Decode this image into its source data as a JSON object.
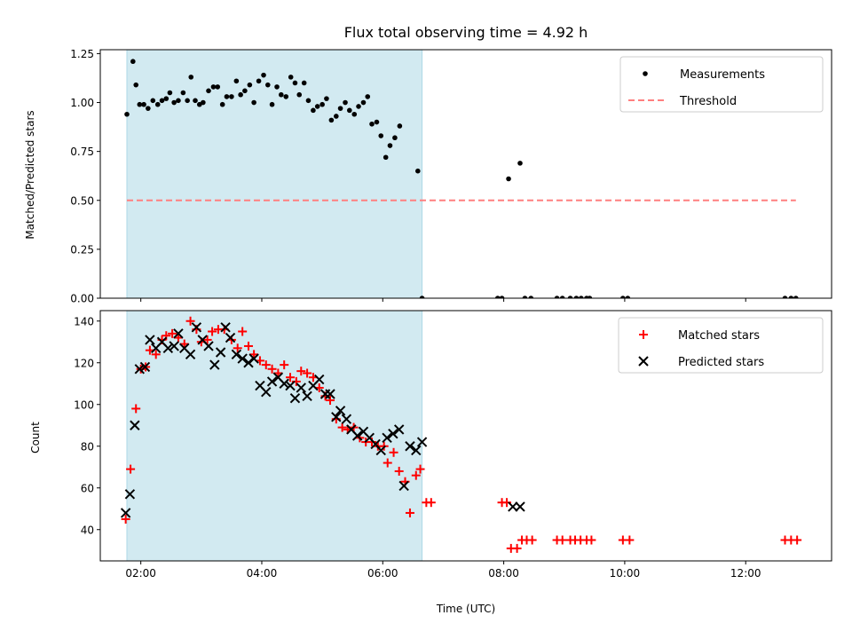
{
  "chart_data": [
    {
      "type": "scatter",
      "panel": "top",
      "title": "Flux total observing time = 4.92 h",
      "ylabel": "Matched/Predicted stars",
      "xlabel": "",
      "x_unit": "hours UTC",
      "xlim": [
        1.33,
        13.42
      ],
      "ylim": [
        0,
        1.27
      ],
      "yticks": [
        "0.00",
        "0.25",
        "0.50",
        "0.75",
        "1.00",
        "1.25"
      ],
      "shaded_span": {
        "x0": 1.77,
        "x1": 6.65,
        "color": "#add8e6"
      },
      "legend": {
        "location": "top-right",
        "entries": [
          "Measurements",
          "Threshold"
        ]
      },
      "series": [
        {
          "name": "Measurements",
          "marker": "dot",
          "color": "#000000",
          "points": [
            [
              1.77,
              0.94
            ],
            [
              1.87,
              1.21
            ],
            [
              1.92,
              1.09
            ],
            [
              1.98,
              0.99
            ],
            [
              2.05,
              0.99
            ],
            [
              2.12,
              0.97
            ],
            [
              2.2,
              1.01
            ],
            [
              2.28,
              0.99
            ],
            [
              2.35,
              1.01
            ],
            [
              2.42,
              1.02
            ],
            [
              2.48,
              1.05
            ],
            [
              2.55,
              1.0
            ],
            [
              2.62,
              1.01
            ],
            [
              2.7,
              1.05
            ],
            [
              2.77,
              1.01
            ],
            [
              2.83,
              1.13
            ],
            [
              2.9,
              1.01
            ],
            [
              2.97,
              0.99
            ],
            [
              3.03,
              1.0
            ],
            [
              3.12,
              1.06
            ],
            [
              3.2,
              1.08
            ],
            [
              3.27,
              1.08
            ],
            [
              3.35,
              0.99
            ],
            [
              3.42,
              1.03
            ],
            [
              3.5,
              1.03
            ],
            [
              3.58,
              1.11
            ],
            [
              3.65,
              1.04
            ],
            [
              3.72,
              1.06
            ],
            [
              3.8,
              1.09
            ],
            [
              3.87,
              1.0
            ],
            [
              3.95,
              1.11
            ],
            [
              4.03,
              1.14
            ],
            [
              4.1,
              1.09
            ],
            [
              4.17,
              0.99
            ],
            [
              4.25,
              1.08
            ],
            [
              4.32,
              1.04
            ],
            [
              4.4,
              1.03
            ],
            [
              4.48,
              1.13
            ],
            [
              4.55,
              1.1
            ],
            [
              4.62,
              1.04
            ],
            [
              4.7,
              1.1
            ],
            [
              4.77,
              1.01
            ],
            [
              4.85,
              0.96
            ],
            [
              4.92,
              0.98
            ],
            [
              5.0,
              0.99
            ],
            [
              5.07,
              1.02
            ],
            [
              5.15,
              0.91
            ],
            [
              5.23,
              0.93
            ],
            [
              5.3,
              0.97
            ],
            [
              5.38,
              1.0
            ],
            [
              5.45,
              0.96
            ],
            [
              5.53,
              0.94
            ],
            [
              5.6,
              0.98
            ],
            [
              5.68,
              1.0
            ],
            [
              5.75,
              1.03
            ],
            [
              5.82,
              0.89
            ],
            [
              5.9,
              0.9
            ],
            [
              5.97,
              0.83
            ],
            [
              6.05,
              0.72
            ],
            [
              6.12,
              0.78
            ],
            [
              6.2,
              0.82
            ],
            [
              6.28,
              0.88
            ],
            [
              6.58,
              0.65
            ],
            [
              6.65,
              0.0
            ],
            [
              7.9,
              0.0
            ],
            [
              7.97,
              0.0
            ],
            [
              8.08,
              0.61
            ],
            [
              8.27,
              0.69
            ],
            [
              8.35,
              0.0
            ],
            [
              8.45,
              0.0
            ],
            [
              8.88,
              0.0
            ],
            [
              8.97,
              0.0
            ],
            [
              9.1,
              0.0
            ],
            [
              9.2,
              0.0
            ],
            [
              9.28,
              0.0
            ],
            [
              9.37,
              0.0
            ],
            [
              9.42,
              0.0
            ],
            [
              9.97,
              0.0
            ],
            [
              10.05,
              0.0
            ],
            [
              12.65,
              0.0
            ],
            [
              12.75,
              0.0
            ],
            [
              12.83,
              0.0
            ]
          ]
        },
        {
          "name": "Threshold",
          "line": "dashed",
          "color": "#ff7f7f",
          "points": [
            [
              1.77,
              0.5
            ],
            [
              12.83,
              0.5
            ]
          ]
        }
      ]
    },
    {
      "type": "scatter",
      "panel": "bottom",
      "title": "",
      "ylabel": "Count",
      "xlabel": "Time (UTC)",
      "x_unit": "hours UTC",
      "xlim": [
        1.33,
        13.42
      ],
      "ylim": [
        25,
        145
      ],
      "yticks": [
        "40",
        "60",
        "80",
        "100",
        "120",
        "140"
      ],
      "xticks": [
        "02:00",
        "04:00",
        "06:00",
        "08:00",
        "10:00",
        "12:00"
      ],
      "shaded_span": {
        "x0": 1.77,
        "x1": 6.65,
        "color": "#add8e6"
      },
      "legend": {
        "location": "top-right",
        "entries": [
          "Matched stars",
          "Predicted stars"
        ]
      },
      "series": [
        {
          "name": "Matched stars",
          "marker": "plus",
          "color": "#ff0000",
          "points": [
            [
              1.75,
              45
            ],
            [
              1.83,
              69
            ],
            [
              1.92,
              98
            ],
            [
              2.0,
              117
            ],
            [
              2.08,
              118
            ],
            [
              2.15,
              126
            ],
            [
              2.25,
              124
            ],
            [
              2.35,
              131
            ],
            [
              2.42,
              133
            ],
            [
              2.52,
              134
            ],
            [
              2.62,
              132
            ],
            [
              2.72,
              129
            ],
            [
              2.82,
              140
            ],
            [
              2.92,
              136
            ],
            [
              3.0,
              130
            ],
            [
              3.1,
              131
            ],
            [
              3.18,
              135
            ],
            [
              3.28,
              136
            ],
            [
              3.38,
              136
            ],
            [
              3.5,
              131
            ],
            [
              3.6,
              127
            ],
            [
              3.68,
              135
            ],
            [
              3.78,
              128
            ],
            [
              3.87,
              124
            ],
            [
              3.97,
              121
            ],
            [
              4.07,
              119
            ],
            [
              4.17,
              117
            ],
            [
              4.27,
              115
            ],
            [
              4.37,
              119
            ],
            [
              4.47,
              113
            ],
            [
              4.57,
              111
            ],
            [
              4.65,
              116
            ],
            [
              4.75,
              115
            ],
            [
              4.85,
              113
            ],
            [
              4.95,
              108
            ],
            [
              5.05,
              104
            ],
            [
              5.13,
              102
            ],
            [
              5.23,
              93
            ],
            [
              5.33,
              89
            ],
            [
              5.42,
              88
            ],
            [
              5.52,
              89
            ],
            [
              5.62,
              84
            ],
            [
              5.72,
              82
            ],
            [
              5.82,
              82
            ],
            [
              5.92,
              80
            ],
            [
              6.02,
              80
            ],
            [
              6.08,
              72
            ],
            [
              6.18,
              77
            ],
            [
              6.27,
              68
            ],
            [
              6.37,
              63
            ],
            [
              6.45,
              48
            ],
            [
              6.55,
              66
            ],
            [
              6.62,
              69
            ],
            [
              6.72,
              53
            ],
            [
              6.8,
              53
            ],
            [
              7.97,
              53
            ],
            [
              8.05,
              53
            ],
            [
              8.12,
              31
            ],
            [
              8.22,
              31
            ],
            [
              8.3,
              35
            ],
            [
              8.38,
              35
            ],
            [
              8.47,
              35
            ],
            [
              8.88,
              35
            ],
            [
              8.97,
              35
            ],
            [
              9.1,
              35
            ],
            [
              9.18,
              35
            ],
            [
              9.27,
              35
            ],
            [
              9.37,
              35
            ],
            [
              9.45,
              35
            ],
            [
              9.97,
              35
            ],
            [
              10.08,
              35
            ],
            [
              12.65,
              35
            ],
            [
              12.75,
              35
            ],
            [
              12.85,
              35
            ]
          ]
        },
        {
          "name": "Predicted stars",
          "marker": "x",
          "color": "#000000",
          "points": [
            [
              1.75,
              48
            ],
            [
              1.82,
              57
            ],
            [
              1.9,
              90
            ],
            [
              1.98,
              117
            ],
            [
              2.07,
              118
            ],
            [
              2.15,
              131
            ],
            [
              2.25,
              127
            ],
            [
              2.35,
              130
            ],
            [
              2.45,
              127
            ],
            [
              2.55,
              128
            ],
            [
              2.62,
              134
            ],
            [
              2.72,
              127
            ],
            [
              2.82,
              124
            ],
            [
              2.92,
              137
            ],
            [
              3.02,
              131
            ],
            [
              3.12,
              128
            ],
            [
              3.22,
              119
            ],
            [
              3.32,
              125
            ],
            [
              3.4,
              137
            ],
            [
              3.48,
              132
            ],
            [
              3.58,
              124
            ],
            [
              3.68,
              122
            ],
            [
              3.78,
              120
            ],
            [
              3.87,
              122
            ],
            [
              3.97,
              109
            ],
            [
              4.07,
              106
            ],
            [
              4.17,
              111
            ],
            [
              4.27,
              113
            ],
            [
              4.37,
              110
            ],
            [
              4.47,
              109
            ],
            [
              4.55,
              103
            ],
            [
              4.65,
              108
            ],
            [
              4.75,
              104
            ],
            [
              4.85,
              109
            ],
            [
              4.95,
              112
            ],
            [
              5.05,
              105
            ],
            [
              5.13,
              105
            ],
            [
              5.23,
              94
            ],
            [
              5.3,
              97
            ],
            [
              5.4,
              93
            ],
            [
              5.48,
              88
            ],
            [
              5.58,
              85
            ],
            [
              5.68,
              87
            ],
            [
              5.78,
              84
            ],
            [
              5.88,
              81
            ],
            [
              5.97,
              78
            ],
            [
              6.07,
              84
            ],
            [
              6.17,
              86
            ],
            [
              6.27,
              88
            ],
            [
              6.35,
              61
            ],
            [
              6.45,
              80
            ],
            [
              6.55,
              78
            ],
            [
              6.65,
              82
            ],
            [
              8.15,
              51
            ],
            [
              8.27,
              51
            ]
          ]
        }
      ]
    }
  ]
}
